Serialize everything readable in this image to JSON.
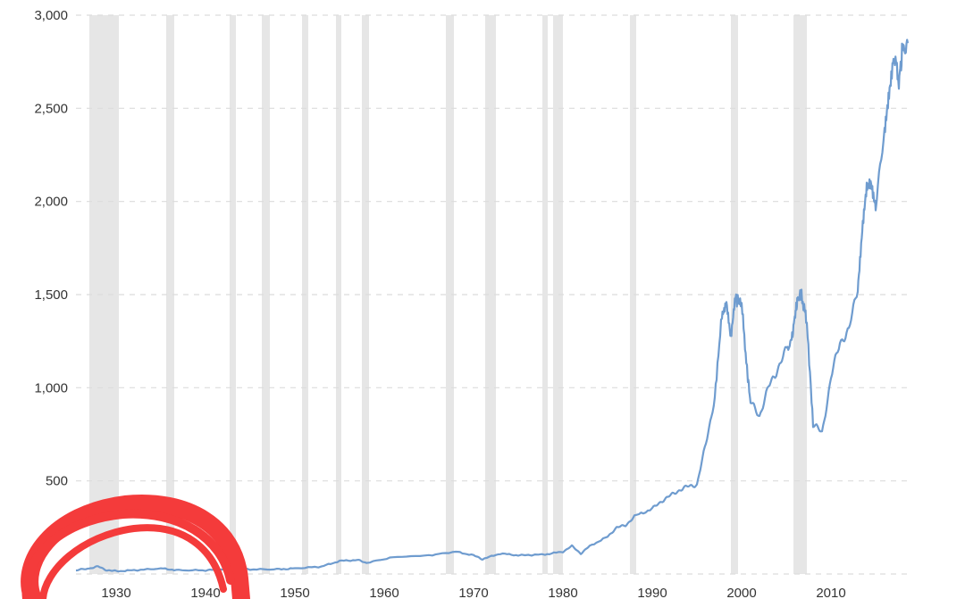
{
  "chart_data": {
    "type": "line",
    "title": "",
    "xlabel": "",
    "ylabel": "",
    "xlim": [
      1925.5,
      2018.8
    ],
    "ylim": [
      0,
      3000
    ],
    "y_ticks": [
      "3,000",
      "2,500",
      "2,000",
      "1,500",
      "1,000",
      "500"
    ],
    "y_tick_values": [
      3000,
      2500,
      2000,
      1500,
      1000,
      500
    ],
    "x_ticks": [
      "1930",
      "1940",
      "1950",
      "1960",
      "1970",
      "1980",
      "1990",
      "2000",
      "2010"
    ],
    "x_tick_values": [
      1930,
      1940,
      1950,
      1960,
      1970,
      1980,
      1990,
      2000,
      2010
    ],
    "grid": "horizontal dashed",
    "recessions": [
      [
        1927.0,
        1930.3
      ],
      [
        1935.6,
        1936.5
      ],
      [
        1942.7,
        1943.4
      ],
      [
        1946.3,
        1947.2
      ],
      [
        1950.8,
        1951.5
      ],
      [
        1954.6,
        1955.2
      ],
      [
        1957.5,
        1958.3
      ],
      [
        1966.9,
        1967.8
      ],
      [
        1971.3,
        1972.5
      ],
      [
        1977.7,
        1978.3
      ],
      [
        1978.9,
        1980.0
      ],
      [
        1987.5,
        1988.2
      ],
      [
        1998.8,
        1999.6
      ],
      [
        2005.8,
        2007.3
      ]
    ],
    "series": [
      {
        "color": "#6f9ccf",
        "x": [
          1925.5,
          1927,
          1928,
          1929,
          1930,
          1932,
          1935,
          1937,
          1940,
          1942,
          1945,
          1948,
          1950,
          1953,
          1955,
          1957,
          1958,
          1961,
          1965,
          1968,
          1970,
          1971,
          1973,
          1975,
          1978,
          1980,
          1981,
          1982,
          1983,
          1985,
          1986,
          1987,
          1988,
          1990,
          1991,
          1992,
          1993,
          1994,
          1995,
          1996,
          1997,
          1997.8,
          1998.3,
          1998.8,
          1999.3,
          2000,
          2000.6,
          2001,
          2002,
          2003,
          2004,
          2005,
          2005.6,
          2006,
          2006.3,
          2006.7,
          2007.3,
          2008,
          2009,
          2010,
          2011,
          2012,
          2013,
          2013.5,
          2014,
          2014.5,
          2015,
          2016,
          2016.5,
          2017,
          2017.6,
          2018,
          2018.6
        ],
        "y": [
          20,
          30,
          40,
          20,
          15,
          20,
          30,
          20,
          20,
          25,
          25,
          25,
          30,
          40,
          70,
          75,
          60,
          90,
          100,
          120,
          100,
          80,
          110,
          100,
          105,
          120,
          150,
          110,
          150,
          200,
          250,
          260,
          310,
          350,
          390,
          420,
          450,
          470,
          480,
          700,
          950,
          1400,
          1470,
          1250,
          1480,
          1450,
          1100,
          920,
          850,
          1000,
          1100,
          1200,
          1250,
          1400,
          1480,
          1500,
          1350,
          800,
          760,
          1050,
          1250,
          1300,
          1550,
          1850,
          2050,
          2100,
          2000,
          2350,
          2600,
          2800,
          2650,
          2800,
          2850
        ]
      }
    ]
  },
  "annotation": {
    "color": "#f43b3b"
  }
}
